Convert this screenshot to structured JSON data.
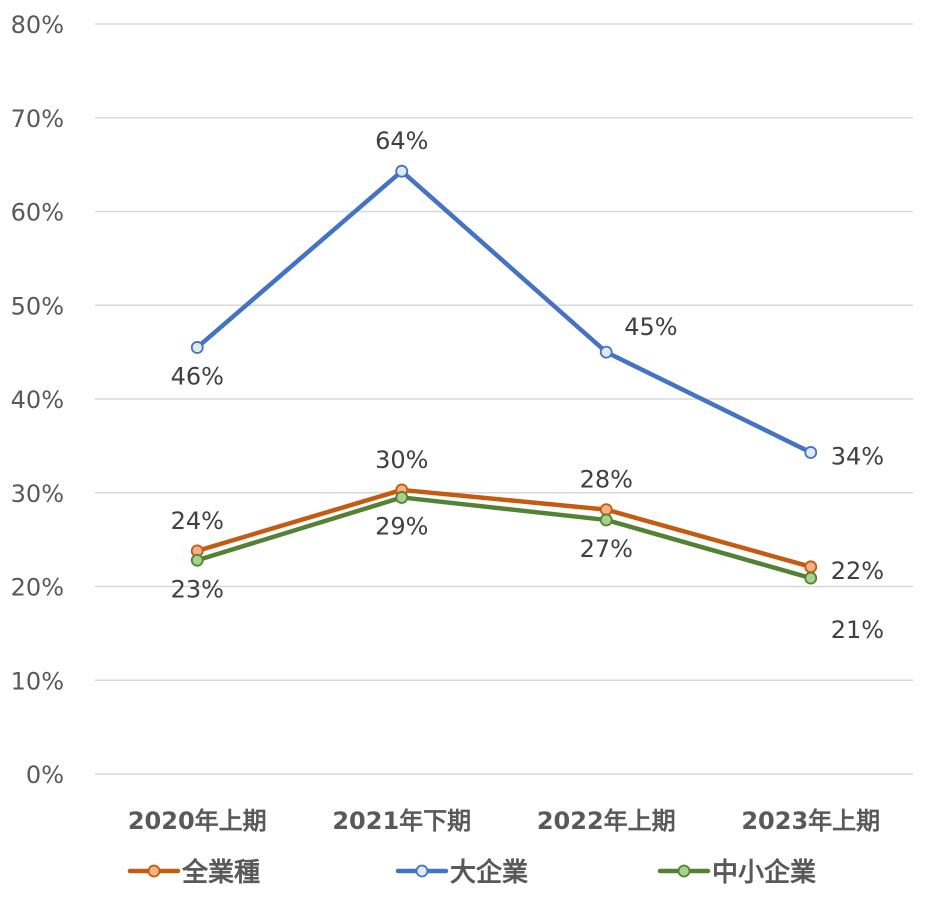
{
  "chart_data": {
    "type": "line",
    "categories": [
      "2020年上期",
      "2021年下期",
      "2022年上期",
      "2023年上期"
    ],
    "ylim": [
      0,
      0.8
    ],
    "yticks": [
      0,
      0.1,
      0.2,
      0.3,
      0.4,
      0.5,
      0.6,
      0.7,
      0.8
    ],
    "ytick_labels": [
      "0%",
      "10%",
      "20%",
      "30%",
      "40%",
      "50%",
      "60%",
      "70%",
      "80%"
    ],
    "grid": true,
    "legend_position": "bottom",
    "series": [
      {
        "name": "全業種",
        "color": "#C55A11",
        "marker_fill": "#F4B183",
        "values": [
          0.238,
          0.303,
          0.282,
          0.221
        ],
        "labels": [
          "24%",
          "30%",
          "28%",
          "22%"
        ],
        "label_positions": [
          "above",
          "above",
          "above",
          "right"
        ]
      },
      {
        "name": "大企業",
        "color": "#4472C4",
        "marker_fill": "#DEEBF7",
        "values": [
          0.455,
          0.643,
          0.45,
          0.343
        ],
        "labels": [
          "46%",
          "64%",
          "45%",
          "34%"
        ],
        "label_positions": [
          "below",
          "above",
          "above-right",
          "right"
        ]
      },
      {
        "name": "中小企業",
        "color": "#548235",
        "marker_fill": "#A9D18E",
        "values": [
          0.228,
          0.295,
          0.271,
          0.209
        ],
        "labels": [
          "23%",
          "29%",
          "27%",
          "21%"
        ],
        "label_positions": [
          "below",
          "below",
          "below",
          "below-right"
        ]
      }
    ]
  }
}
